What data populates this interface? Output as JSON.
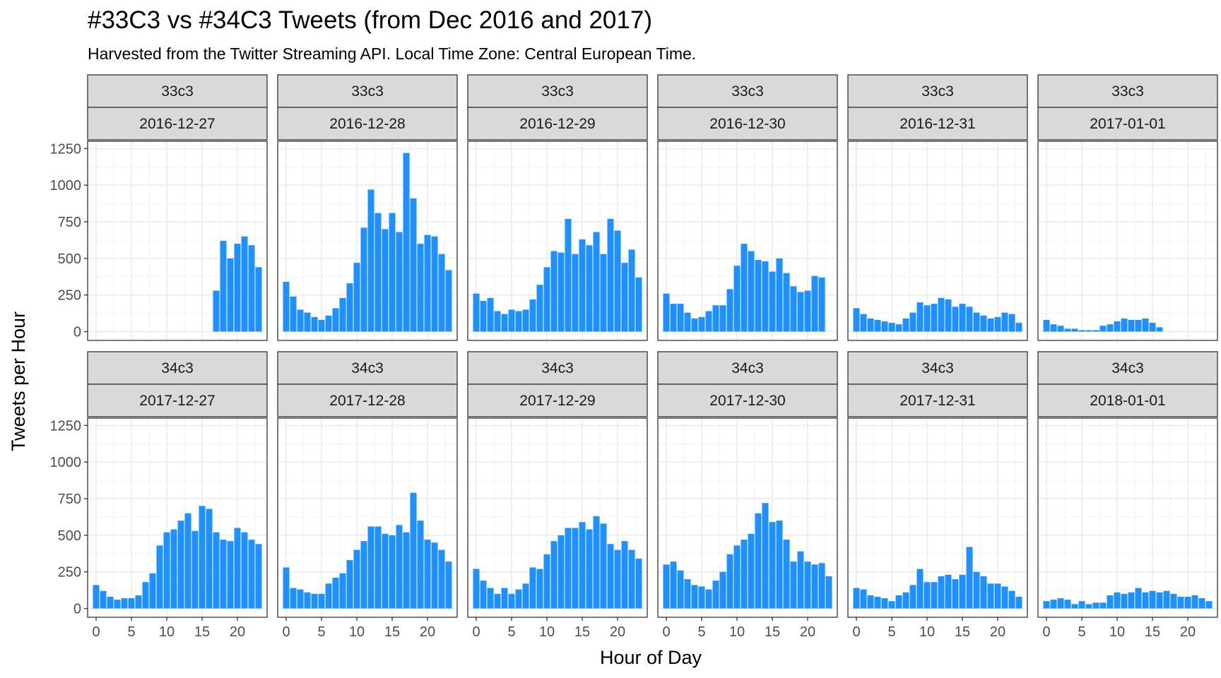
{
  "chart_data": {
    "type": "bar",
    "title": "#33C3 vs #34C3 Tweets (from Dec 2016 and 2017)",
    "subtitle": "Harvested from the Twitter Streaming API. Local Time Zone: Central European Time.",
    "xlabel": "Hour of Day",
    "ylabel": "Tweets per Hour",
    "xlim": [
      -1.2,
      24.2
    ],
    "ylim": [
      -60,
      1300
    ],
    "x_ticks": [
      0,
      5,
      10,
      15,
      20
    ],
    "y_ticks": [
      0,
      250,
      500,
      750,
      1000,
      1250
    ],
    "bar_color": "#1E90FF",
    "strip_fill": "#d9d9d9",
    "grid": true,
    "panels": [
      {
        "event": "33c3",
        "date": "2016-12-27",
        "values": [
          null,
          null,
          null,
          null,
          null,
          null,
          null,
          null,
          null,
          null,
          null,
          null,
          null,
          null,
          null,
          null,
          null,
          280,
          620,
          500,
          600,
          650,
          590,
          440
        ]
      },
      {
        "event": "33c3",
        "date": "2016-12-28",
        "values": [
          340,
          240,
          150,
          130,
          100,
          80,
          110,
          160,
          230,
          330,
          470,
          710,
          970,
          810,
          700,
          810,
          680,
          1220,
          910,
          600,
          660,
          650,
          530,
          420
        ]
      },
      {
        "event": "33c3",
        "date": "2016-12-29",
        "values": [
          260,
          210,
          230,
          140,
          120,
          150,
          140,
          150,
          220,
          320,
          440,
          550,
          540,
          770,
          530,
          630,
          590,
          680,
          530,
          770,
          690,
          470,
          560,
          370
        ]
      },
      {
        "event": "33c3",
        "date": "2016-12-30",
        "values": [
          260,
          190,
          190,
          130,
          90,
          100,
          140,
          180,
          180,
          290,
          450,
          600,
          550,
          490,
          480,
          410,
          500,
          400,
          310,
          270,
          280,
          380,
          370,
          null
        ]
      },
      {
        "event": "33c3",
        "date": "2016-12-31",
        "values": [
          160,
          120,
          90,
          80,
          70,
          60,
          50,
          90,
          130,
          200,
          180,
          190,
          230,
          220,
          170,
          190,
          170,
          130,
          110,
          90,
          100,
          130,
          120,
          60
        ]
      },
      {
        "event": "33c3",
        "date": "2017-01-01",
        "values": [
          80,
          50,
          40,
          20,
          20,
          10,
          10,
          10,
          40,
          50,
          70,
          90,
          80,
          80,
          90,
          60,
          30,
          null,
          null,
          null,
          null,
          null,
          null,
          null
        ]
      },
      {
        "event": "34c3",
        "date": "2017-12-27",
        "values": [
          160,
          120,
          80,
          60,
          70,
          70,
          90,
          180,
          240,
          430,
          520,
          540,
          600,
          650,
          530,
          700,
          680,
          520,
          470,
          460,
          550,
          520,
          470,
          440
        ]
      },
      {
        "event": "34c3",
        "date": "2017-12-28",
        "values": [
          280,
          140,
          130,
          110,
          100,
          100,
          170,
          210,
          240,
          330,
          400,
          460,
          560,
          560,
          510,
          500,
          570,
          520,
          790,
          600,
          470,
          450,
          400,
          320
        ]
      },
      {
        "event": "34c3",
        "date": "2017-12-29",
        "values": [
          270,
          190,
          140,
          100,
          140,
          100,
          130,
          170,
          280,
          270,
          370,
          460,
          500,
          550,
          550,
          590,
          540,
          630,
          580,
          440,
          400,
          460,
          400,
          340
        ]
      },
      {
        "event": "34c3",
        "date": "2017-12-30",
        "values": [
          300,
          320,
          260,
          200,
          160,
          150,
          130,
          190,
          250,
          370,
          430,
          470,
          510,
          650,
          720,
          590,
          600,
          470,
          320,
          390,
          320,
          300,
          310,
          220
        ]
      },
      {
        "event": "34c3",
        "date": "2017-12-31",
        "values": [
          140,
          130,
          90,
          80,
          70,
          50,
          90,
          110,
          160,
          270,
          180,
          180,
          220,
          230,
          200,
          230,
          420,
          250,
          220,
          170,
          170,
          150,
          120,
          80
        ]
      },
      {
        "event": "34c3",
        "date": "2018-01-01",
        "values": [
          50,
          60,
          70,
          60,
          30,
          50,
          30,
          40,
          40,
          90,
          110,
          100,
          110,
          140,
          110,
          120,
          110,
          120,
          100,
          80,
          80,
          90,
          70,
          50
        ]
      }
    ]
  }
}
